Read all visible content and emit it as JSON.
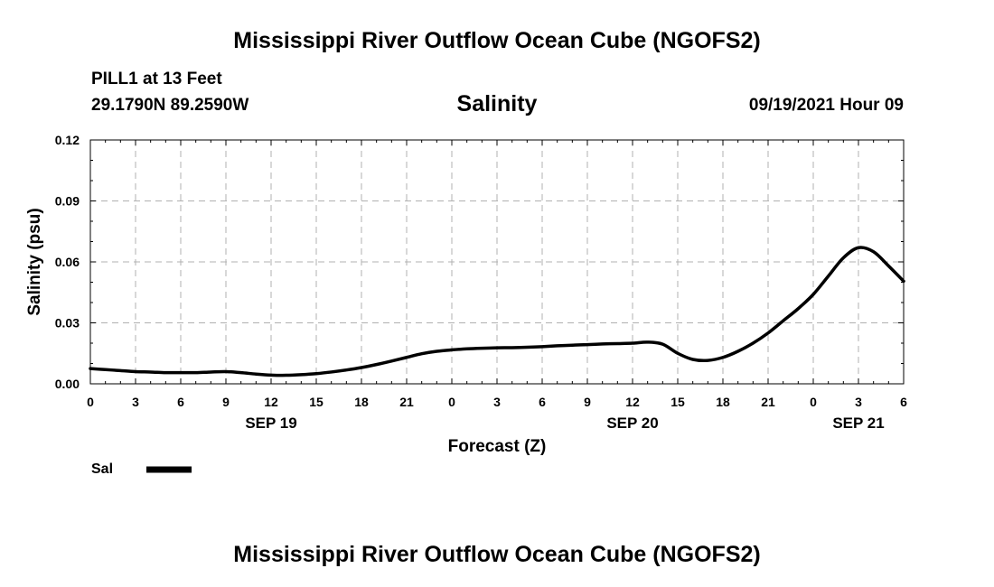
{
  "header": {
    "main_title": "Mississippi River Outflow Ocean Cube (NGOFS2)",
    "station": "PILL1 at 13 Feet",
    "coords": "29.1790N  89.2590W",
    "chart_title": "Salinity",
    "datetime": "09/19/2021 Hour 09"
  },
  "footer": {
    "title": "Mississippi River Outflow Ocean Cube (NGOFS2)"
  },
  "chart_data": {
    "type": "line",
    "title": "Salinity",
    "xlabel": "Forecast (Z)",
    "ylabel": "Salinity (psu)",
    "xlim": [
      0,
      54
    ],
    "ylim": [
      0,
      0.12
    ],
    "yticks": [
      "0.00",
      "0.03",
      "0.06",
      "0.09",
      "0.12"
    ],
    "xtick_labels": [
      "0",
      "3",
      "6",
      "9",
      "12",
      "15",
      "18",
      "21",
      "0",
      "3",
      "6",
      "9",
      "12",
      "15",
      "18",
      "21",
      "0",
      "3",
      "6"
    ],
    "date_labels": [
      {
        "label": "SEP 19",
        "hour": 12
      },
      {
        "label": "SEP 20",
        "hour": 36
      },
      {
        "label": "SEP 21",
        "hour": 51
      }
    ],
    "grid": true,
    "legend": [
      {
        "name": "Sal",
        "color": "#000000"
      }
    ],
    "series": [
      {
        "name": "Sal",
        "x": [
          0,
          1,
          2,
          3,
          4,
          5,
          6,
          7,
          8,
          9,
          10,
          11,
          12,
          13,
          14,
          15,
          16,
          17,
          18,
          19,
          20,
          21,
          22,
          23,
          24,
          25,
          26,
          27,
          28,
          29,
          30,
          31,
          32,
          33,
          34,
          35,
          36,
          37,
          38,
          39,
          40,
          41,
          42,
          43,
          44,
          45,
          46,
          47,
          48,
          49,
          50,
          51,
          52,
          53,
          54
        ],
        "y": [
          0.0075,
          0.007,
          0.0065,
          0.006,
          0.0058,
          0.0055,
          0.0055,
          0.0055,
          0.0058,
          0.006,
          0.0055,
          0.0048,
          0.0043,
          0.0042,
          0.0045,
          0.005,
          0.0058,
          0.0068,
          0.008,
          0.0095,
          0.0112,
          0.013,
          0.0148,
          0.016,
          0.0167,
          0.0172,
          0.0175,
          0.0177,
          0.0178,
          0.018,
          0.0183,
          0.0187,
          0.019,
          0.0193,
          0.0196,
          0.0198,
          0.02,
          0.0205,
          0.0195,
          0.015,
          0.012,
          0.0115,
          0.013,
          0.016,
          0.02,
          0.025,
          0.031,
          0.037,
          0.044,
          0.053,
          0.062,
          0.067,
          0.065,
          0.058,
          0.0505
        ]
      }
    ]
  }
}
